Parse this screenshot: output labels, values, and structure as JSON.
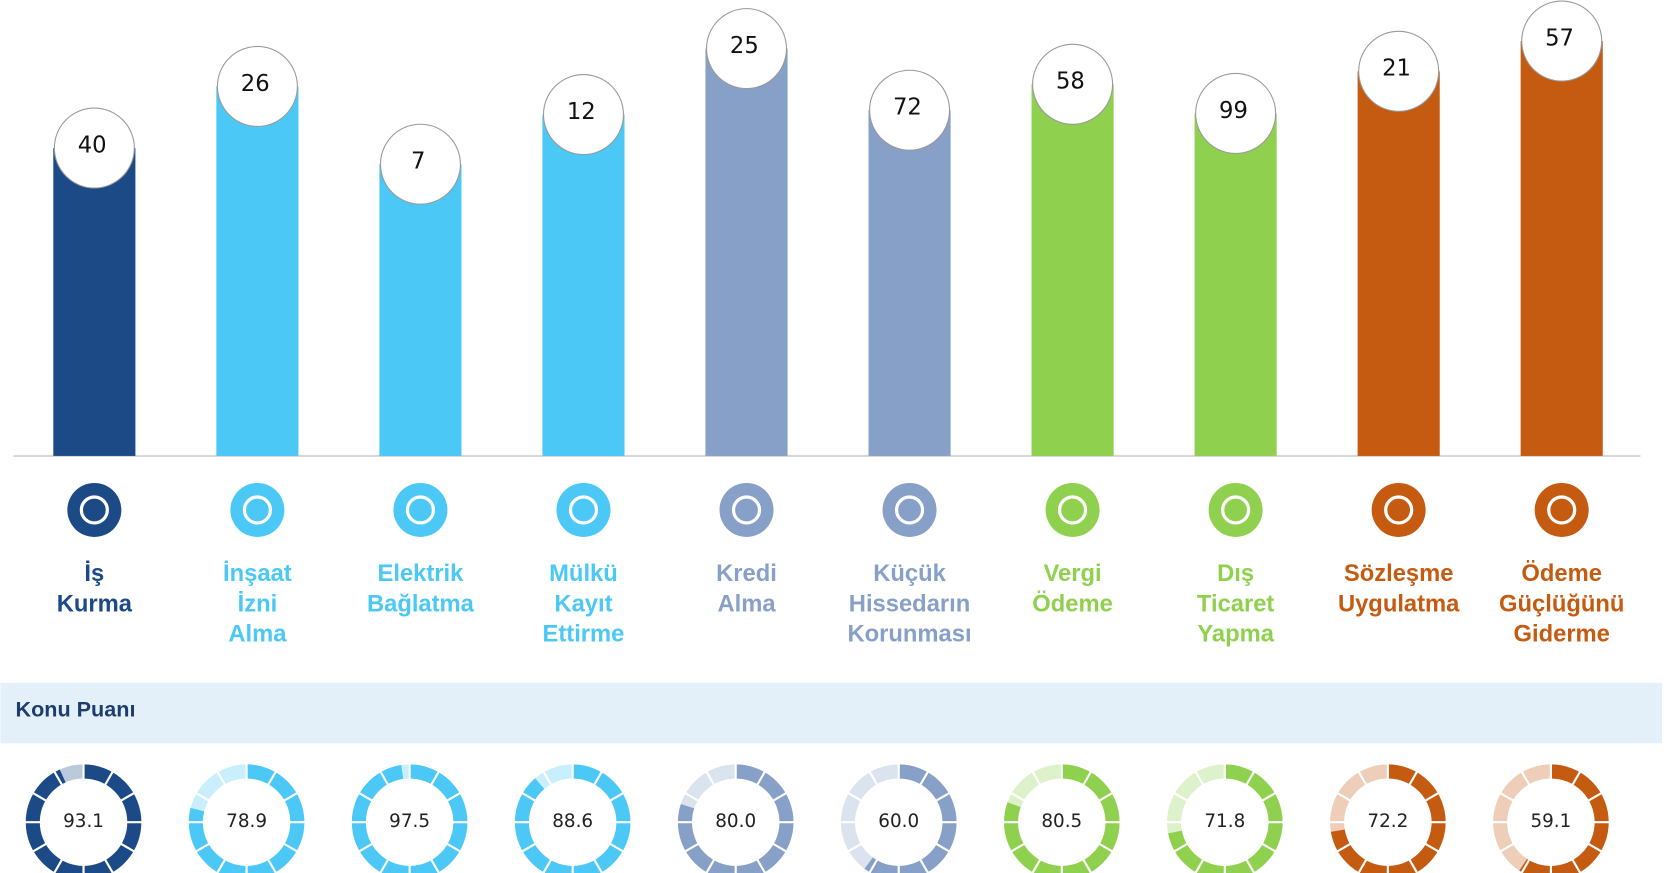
{
  "items": [
    {
      "label": [
        "İş",
        "Kurma"
      ],
      "rank": "40",
      "score": 93.1,
      "score_label": "93.1",
      "color": "#1c4a87"
    },
    {
      "label": [
        "İnşaat",
        "İzni",
        "Alma"
      ],
      "rank": "26",
      "score": 78.9,
      "score_label": "78.9",
      "color": "#4bc8f5"
    },
    {
      "label": [
        "Elektrik",
        "Bağlatma"
      ],
      "rank": "7",
      "score": 97.5,
      "score_label": "97.5",
      "color": "#4bc8f5"
    },
    {
      "label": [
        "Mülkü",
        "Kayıt",
        "Ettirme"
      ],
      "rank": "12",
      "score": 88.6,
      "score_label": "88.6",
      "color": "#4bc8f5"
    },
    {
      "label": [
        "Kredi",
        "Alma"
      ],
      "rank": "25",
      "score": 80.0,
      "score_label": "80.0",
      "color": "#87a0c8"
    },
    {
      "label": [
        "Küçük",
        "Hissedarın",
        "Korunması"
      ],
      "rank": "72",
      "score": 60.0,
      "score_label": "60.0",
      "color": "#87a0c8"
    },
    {
      "label": [
        "Vergi",
        "Ödeme"
      ],
      "rank": "58",
      "score": 80.5,
      "score_label": "80.5",
      "color": "#8fd14f"
    },
    {
      "label": [
        "Dış",
        "Ticaret",
        "Yapma"
      ],
      "rank": "99",
      "score": 71.8,
      "score_label": "71.8",
      "color": "#8fd14f"
    },
    {
      "label": [
        "Sözleşme",
        "Uygulatma"
      ],
      "rank": "21",
      "score": 72.2,
      "score_label": "72.2",
      "color": "#c55a11"
    },
    {
      "label": [
        "Ödeme",
        "Güçlüğünü",
        "Giderme"
      ],
      "rank": "57",
      "score": 59.1,
      "score_label": "59.1",
      "color": "#c55a11"
    }
  ],
  "section_title": "Konu Puanı"
}
